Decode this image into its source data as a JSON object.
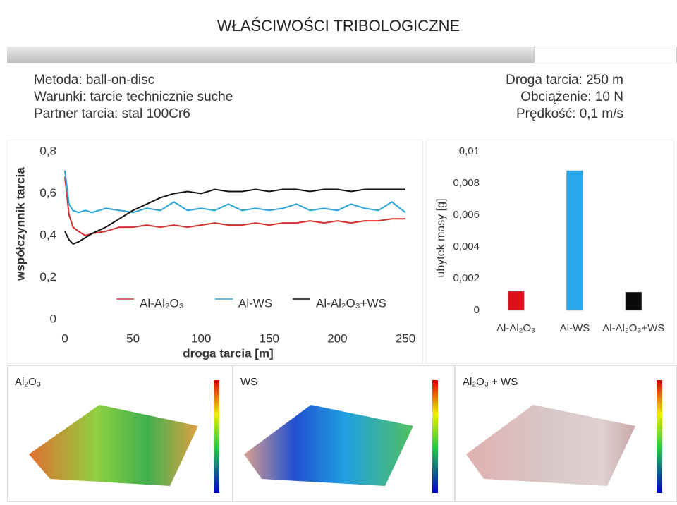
{
  "header": {
    "title": "WŁAŚCIWOŚCI TRIBOLOGICZNE"
  },
  "info_left": [
    "Metoda: ball-on-disc",
    "Warunki: tarcie technicznie suche",
    "Partner tarcia: stal 100Cr6"
  ],
  "info_right": [
    "Droga tarcia: 250 m",
    "Obciążenie: 10 N",
    "Prędkość: 0,1 m/s"
  ],
  "chart_data": [
    {
      "type": "line",
      "xlabel": "droga tarcia [m]",
      "ylabel": "współczynnik tarcia",
      "x": [
        0,
        3,
        6,
        10,
        15,
        20,
        30,
        40,
        50,
        60,
        70,
        80,
        90,
        100,
        110,
        120,
        130,
        140,
        150,
        160,
        170,
        180,
        190,
        200,
        210,
        220,
        230,
        240,
        250
      ],
      "series": [
        {
          "name": "Al-Al₂O₃",
          "color": "#d32f2f",
          "values": [
            0.68,
            0.5,
            0.44,
            0.42,
            0.4,
            0.41,
            0.42,
            0.44,
            0.44,
            0.45,
            0.44,
            0.45,
            0.44,
            0.45,
            0.46,
            0.45,
            0.45,
            0.46,
            0.45,
            0.46,
            0.46,
            0.47,
            0.46,
            0.47,
            0.46,
            0.47,
            0.47,
            0.48,
            0.48
          ]
        },
        {
          "name": "Al-WS",
          "color": "#29a3d8",
          "values": [
            0.71,
            0.55,
            0.52,
            0.51,
            0.52,
            0.51,
            0.53,
            0.52,
            0.51,
            0.53,
            0.52,
            0.56,
            0.52,
            0.53,
            0.52,
            0.55,
            0.52,
            0.53,
            0.52,
            0.53,
            0.55,
            0.52,
            0.53,
            0.52,
            0.55,
            0.53,
            0.52,
            0.56,
            0.51
          ]
        },
        {
          "name": "Al-Al₂O₃+WS",
          "color": "#111111",
          "values": [
            0.42,
            0.38,
            0.36,
            0.37,
            0.39,
            0.41,
            0.44,
            0.48,
            0.52,
            0.55,
            0.58,
            0.6,
            0.61,
            0.6,
            0.62,
            0.61,
            0.61,
            0.62,
            0.61,
            0.62,
            0.62,
            0.61,
            0.62,
            0.62,
            0.61,
            0.62,
            0.62,
            0.62,
            0.62
          ]
        }
      ],
      "xlim": [
        0,
        250
      ],
      "xticks": [
        0,
        50,
        100,
        150,
        200,
        250
      ],
      "ylim": [
        0,
        0.8
      ],
      "yticks": [
        0,
        {
          "value": 0.2,
          "label": "0,2"
        },
        {
          "value": 0.4,
          "label": "0,4"
        },
        {
          "value": 0.6,
          "label": "0,6"
        },
        {
          "value": 0.8,
          "label": "0,8"
        }
      ]
    },
    {
      "type": "bar",
      "ylabel": "ubytek masy [g]",
      "categories": [
        "Al-Al₂O₃",
        "Al-WS",
        "Al-Al₂O₃+WS"
      ],
      "values": [
        0.0012,
        0.0088,
        0.00115
      ],
      "colors": [
        "#e0101a",
        "#2aa8ec",
        "#0a0a0a"
      ],
      "ylim": [
        0,
        0.01
      ],
      "yticks": [
        0,
        {
          "value": 0.002,
          "label": "0,002"
        },
        {
          "value": 0.004,
          "label": "0,004"
        },
        {
          "value": 0.006,
          "label": "0,006"
        },
        {
          "value": 0.008,
          "label": "0,008"
        },
        {
          "value": 0.01,
          "label": "0,01"
        }
      ]
    }
  ],
  "images": [
    {
      "label": "Al₂O₃"
    },
    {
      "label": "WS"
    },
    {
      "label": "Al₂O₃ + WS"
    }
  ]
}
